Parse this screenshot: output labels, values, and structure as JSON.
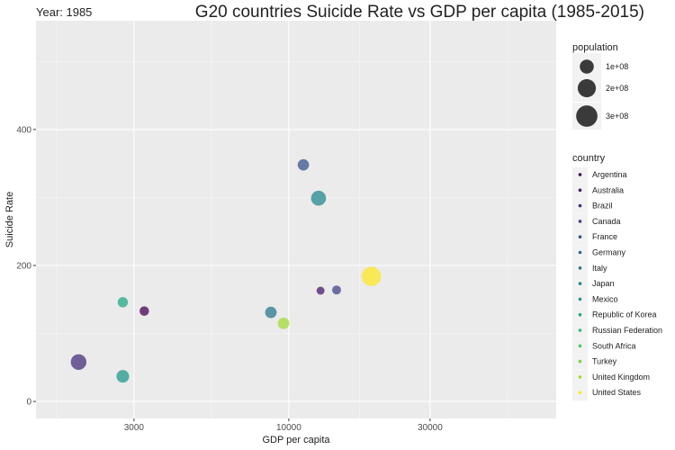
{
  "chart_data": {
    "type": "scatter",
    "title": "G20 countries Suicide Rate vs GDP per capita (1985-2015)",
    "subtitle": "Year: 1985",
    "xlabel": "GDP per capita",
    "ylabel": "Suicide Rate",
    "x_scale": "log10",
    "xlim": [
      1400,
      80000
    ],
    "ylim": [
      -25,
      560
    ],
    "x_ticks": [
      3000,
      10000,
      30000
    ],
    "x_tick_labels": [
      "3000",
      "10000",
      "30000"
    ],
    "y_ticks": [
      0,
      200,
      400
    ],
    "y_tick_labels": [
      "0",
      "200",
      "400"
    ],
    "grid": true,
    "panel_background": "#ebebeb",
    "size_legend": {
      "title": "population",
      "breaks": [
        100000000,
        200000000,
        300000000
      ],
      "labels": [
        "1e+08",
        "2e+08",
        "3e+08"
      ],
      "fill": "#3a3a3a"
    },
    "color_legend": {
      "title": "country",
      "items": [
        {
          "name": "Argentina",
          "color": "#440154"
        },
        {
          "name": "Australia",
          "color": "#481a6c"
        },
        {
          "name": "Brazil",
          "color": "#472f7d"
        },
        {
          "name": "Canada",
          "color": "#414487"
        },
        {
          "name": "France",
          "color": "#39568c"
        },
        {
          "name": "Germany",
          "color": "#31688e"
        },
        {
          "name": "Italy",
          "color": "#2a788e"
        },
        {
          "name": "Japan",
          "color": "#23888e"
        },
        {
          "name": "Mexico",
          "color": "#1f988b"
        },
        {
          "name": "Republic of Korea",
          "color": "#22a884"
        },
        {
          "name": "Russian Federation",
          "color": "#35b779"
        },
        {
          "name": "South Africa",
          "color": "#54c568"
        },
        {
          "name": "Turkey",
          "color": "#7ad151"
        },
        {
          "name": "United Kingdom",
          "color": "#a5db36"
        },
        {
          "name": "United States",
          "color": "#fde725"
        }
      ]
    },
    "points": [
      {
        "x": 3250,
        "y": 133,
        "size": 30000000,
        "color": "#440154"
      },
      {
        "x": 1950,
        "y": 58,
        "size": 136000000,
        "color": "#472f7d"
      },
      {
        "x": 14500,
        "y": 164,
        "size": 25000000,
        "color": "#414487"
      },
      {
        "x": 11200,
        "y": 348,
        "size": 55000000,
        "color": "#39568c"
      },
      {
        "x": 8700,
        "y": 131,
        "size": 57000000,
        "color": "#2a788e"
      },
      {
        "x": 12600,
        "y": 299,
        "size": 121000000,
        "color": "#23888e"
      },
      {
        "x": 2750,
        "y": 37,
        "size": 75000000,
        "color": "#1f988b"
      },
      {
        "x": 2750,
        "y": 146,
        "size": 40000000,
        "color": "#22a884"
      },
      {
        "x": 9600,
        "y": 115,
        "size": 57000000,
        "color": "#a5db36"
      },
      {
        "x": 12800,
        "y": 163,
        "size": 16000000,
        "color": "#481a6c"
      },
      {
        "x": 19000,
        "y": 184,
        "size": 238000000,
        "color": "#fde725"
      }
    ]
  }
}
